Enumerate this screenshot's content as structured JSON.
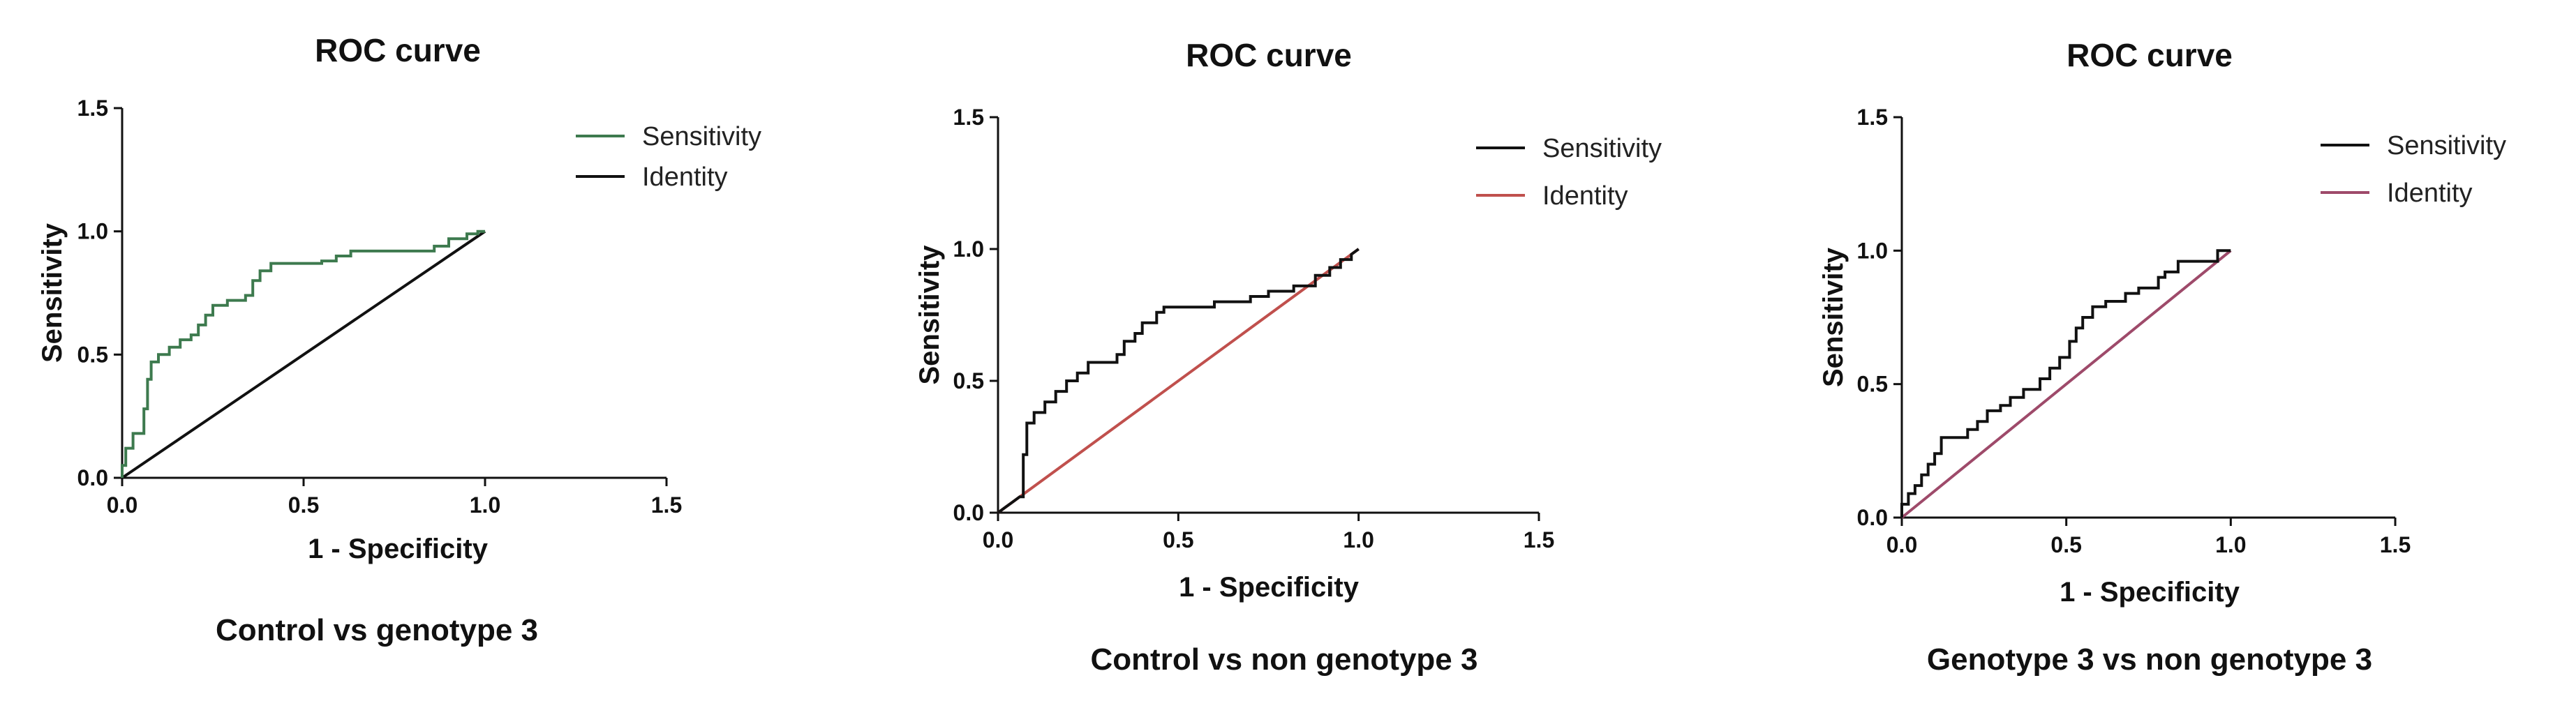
{
  "chart_data": [
    {
      "type": "line",
      "title": "ROC curve",
      "xlabel": "1 - Specificity",
      "ylabel": "Sensitivity",
      "caption": "Control vs genotype 3",
      "xlim": [
        0,
        1.5
      ],
      "ylim": [
        0,
        1.5
      ],
      "xticks": [
        "0.0",
        "0.5",
        "1.0",
        "1.5"
      ],
      "yticks": [
        "0.0",
        "0.5",
        "1.0",
        "1.5"
      ],
      "series": [
        {
          "name": "Sensitivity",
          "color": "#3d7a4e",
          "points": [
            [
              0,
              0
            ],
            [
              0,
              0.05
            ],
            [
              0.01,
              0.05
            ],
            [
              0.01,
              0.12
            ],
            [
              0.03,
              0.12
            ],
            [
              0.03,
              0.18
            ],
            [
              0.06,
              0.18
            ],
            [
              0.06,
              0.28
            ],
            [
              0.07,
              0.28
            ],
            [
              0.07,
              0.4
            ],
            [
              0.08,
              0.4
            ],
            [
              0.08,
              0.47
            ],
            [
              0.1,
              0.47
            ],
            [
              0.1,
              0.5
            ],
            [
              0.13,
              0.5
            ],
            [
              0.13,
              0.53
            ],
            [
              0.16,
              0.53
            ],
            [
              0.16,
              0.56
            ],
            [
              0.19,
              0.56
            ],
            [
              0.19,
              0.58
            ],
            [
              0.21,
              0.58
            ],
            [
              0.21,
              0.62
            ],
            [
              0.23,
              0.62
            ],
            [
              0.23,
              0.66
            ],
            [
              0.25,
              0.66
            ],
            [
              0.25,
              0.7
            ],
            [
              0.29,
              0.7
            ],
            [
              0.29,
              0.72
            ],
            [
              0.34,
              0.72
            ],
            [
              0.34,
              0.74
            ],
            [
              0.36,
              0.74
            ],
            [
              0.36,
              0.8
            ],
            [
              0.38,
              0.8
            ],
            [
              0.38,
              0.84
            ],
            [
              0.41,
              0.84
            ],
            [
              0.41,
              0.87
            ],
            [
              0.55,
              0.87
            ],
            [
              0.55,
              0.88
            ],
            [
              0.59,
              0.88
            ],
            [
              0.59,
              0.9
            ],
            [
              0.63,
              0.9
            ],
            [
              0.63,
              0.92
            ],
            [
              0.86,
              0.92
            ],
            [
              0.86,
              0.94
            ],
            [
              0.9,
              0.94
            ],
            [
              0.9,
              0.97
            ],
            [
              0.95,
              0.97
            ],
            [
              0.95,
              0.99
            ],
            [
              0.98,
              0.99
            ],
            [
              0.98,
              1.0
            ],
            [
              1.0,
              1.0
            ]
          ]
        },
        {
          "name": "Identity",
          "color": "#111111",
          "points": [
            [
              0,
              0
            ],
            [
              1,
              1
            ]
          ]
        }
      ]
    },
    {
      "type": "line",
      "title": "ROC curve",
      "xlabel": "1 - Specificity",
      "ylabel": "Sensitivity",
      "caption": "Control vs non genotype 3",
      "xlim": [
        0,
        1.5
      ],
      "ylim": [
        0,
        1.5
      ],
      "xticks": [
        "0.0",
        "0.5",
        "1.0",
        "1.5"
      ],
      "yticks": [
        "0.0",
        "0.5",
        "1.0",
        "1.5"
      ],
      "series": [
        {
          "name": "Sensitivity",
          "color": "#111111",
          "points": [
            [
              0,
              0
            ],
            [
              0.02,
              0.02
            ],
            [
              0.04,
              0.04
            ],
            [
              0.06,
              0.06
            ],
            [
              0.07,
              0.06
            ],
            [
              0.07,
              0.22
            ],
            [
              0.08,
              0.22
            ],
            [
              0.08,
              0.34
            ],
            [
              0.1,
              0.34
            ],
            [
              0.1,
              0.38
            ],
            [
              0.13,
              0.38
            ],
            [
              0.13,
              0.42
            ],
            [
              0.16,
              0.42
            ],
            [
              0.16,
              0.46
            ],
            [
              0.19,
              0.46
            ],
            [
              0.19,
              0.5
            ],
            [
              0.22,
              0.5
            ],
            [
              0.22,
              0.53
            ],
            [
              0.25,
              0.53
            ],
            [
              0.25,
              0.57
            ],
            [
              0.33,
              0.57
            ],
            [
              0.33,
              0.6
            ],
            [
              0.35,
              0.6
            ],
            [
              0.35,
              0.65
            ],
            [
              0.38,
              0.65
            ],
            [
              0.38,
              0.68
            ],
            [
              0.4,
              0.68
            ],
            [
              0.4,
              0.72
            ],
            [
              0.44,
              0.72
            ],
            [
              0.44,
              0.76
            ],
            [
              0.46,
              0.76
            ],
            [
              0.46,
              0.78
            ],
            [
              0.6,
              0.78
            ],
            [
              0.6,
              0.8
            ],
            [
              0.7,
              0.8
            ],
            [
              0.7,
              0.82
            ],
            [
              0.75,
              0.82
            ],
            [
              0.75,
              0.84
            ],
            [
              0.82,
              0.84
            ],
            [
              0.82,
              0.86
            ],
            [
              0.88,
              0.86
            ],
            [
              0.88,
              0.9
            ],
            [
              0.92,
              0.9
            ],
            [
              0.92,
              0.93
            ],
            [
              0.95,
              0.93
            ],
            [
              0.95,
              0.96
            ],
            [
              0.98,
              0.96
            ],
            [
              0.98,
              0.98
            ],
            [
              1.0,
              1.0
            ]
          ]
        },
        {
          "name": "Identity",
          "color": "#c0504d",
          "points": [
            [
              0,
              0
            ],
            [
              1,
              1
            ]
          ]
        }
      ]
    },
    {
      "type": "line",
      "title": "ROC curve",
      "xlabel": "1 - Specificity",
      "ylabel": "Sensitivity",
      "caption": "Genotype 3 vs non genotype 3",
      "xlim": [
        0,
        1.5
      ],
      "ylim": [
        0,
        1.5
      ],
      "xticks": [
        "0.0",
        "0.5",
        "1.0",
        "1.5"
      ],
      "yticks": [
        "0.0",
        "0.5",
        "1.0",
        "1.5"
      ],
      "series": [
        {
          "name": "Sensitivity",
          "color": "#111111",
          "points": [
            [
              0,
              0
            ],
            [
              0,
              0.05
            ],
            [
              0.02,
              0.05
            ],
            [
              0.02,
              0.09
            ],
            [
              0.04,
              0.09
            ],
            [
              0.04,
              0.12
            ],
            [
              0.06,
              0.12
            ],
            [
              0.06,
              0.16
            ],
            [
              0.08,
              0.16
            ],
            [
              0.08,
              0.2
            ],
            [
              0.1,
              0.2
            ],
            [
              0.1,
              0.24
            ],
            [
              0.12,
              0.24
            ],
            [
              0.12,
              0.3
            ],
            [
              0.2,
              0.3
            ],
            [
              0.2,
              0.33
            ],
            [
              0.23,
              0.33
            ],
            [
              0.23,
              0.36
            ],
            [
              0.26,
              0.36
            ],
            [
              0.26,
              0.4
            ],
            [
              0.3,
              0.4
            ],
            [
              0.3,
              0.42
            ],
            [
              0.33,
              0.42
            ],
            [
              0.33,
              0.45
            ],
            [
              0.37,
              0.45
            ],
            [
              0.37,
              0.48
            ],
            [
              0.42,
              0.48
            ],
            [
              0.42,
              0.52
            ],
            [
              0.45,
              0.52
            ],
            [
              0.45,
              0.56
            ],
            [
              0.48,
              0.56
            ],
            [
              0.48,
              0.6
            ],
            [
              0.51,
              0.6
            ],
            [
              0.51,
              0.66
            ],
            [
              0.53,
              0.66
            ],
            [
              0.53,
              0.71
            ],
            [
              0.55,
              0.71
            ],
            [
              0.55,
              0.75
            ],
            [
              0.58,
              0.75
            ],
            [
              0.58,
              0.79
            ],
            [
              0.62,
              0.79
            ],
            [
              0.62,
              0.81
            ],
            [
              0.68,
              0.81
            ],
            [
              0.68,
              0.84
            ],
            [
              0.72,
              0.84
            ],
            [
              0.72,
              0.86
            ],
            [
              0.78,
              0.86
            ],
            [
              0.78,
              0.9
            ],
            [
              0.8,
              0.9
            ],
            [
              0.8,
              0.92
            ],
            [
              0.84,
              0.92
            ],
            [
              0.84,
              0.96
            ],
            [
              0.96,
              0.96
            ],
            [
              0.96,
              1.0
            ],
            [
              1.0,
              1.0
            ]
          ]
        },
        {
          "name": "Identity",
          "color": "#9e4a6a",
          "points": [
            [
              0,
              0
            ],
            [
              1,
              1
            ]
          ]
        }
      ]
    }
  ]
}
